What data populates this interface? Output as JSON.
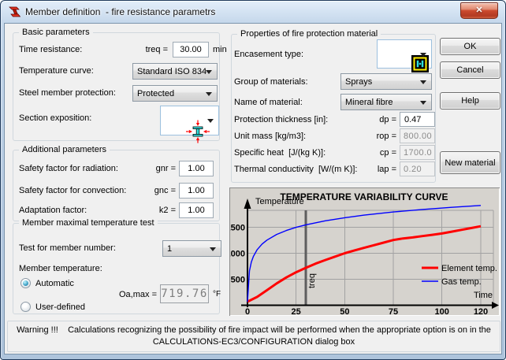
{
  "window": {
    "title": "Member definition  - fire resistance parametrs",
    "close_glyph": "✕"
  },
  "icons": {
    "titlebar": "steel-beam-icon",
    "close": "close-icon",
    "section_exposition": "beam-exposed-four-sides-icon",
    "encasement": "contour-encasement-icon"
  },
  "colors": {
    "element_temp": "#ff0000",
    "gas_temp": "#0000ff",
    "dialog_bg": "#f0f0f0",
    "chart_bg": "#d6d3ce",
    "close_button": "#c04a2e"
  },
  "basic": {
    "title": "Basic parameters",
    "time_resistance": {
      "label": "Time resistance:",
      "symbol": "treq =",
      "value": "30.00",
      "unit": "min"
    },
    "temperature_curve": {
      "label": "Temperature curve:",
      "value": "Standard ISO 834"
    },
    "steel_protection": {
      "label": "Steel member protection:",
      "value": "Protected"
    },
    "section_exposition": {
      "label": "Section exposition:"
    }
  },
  "additional": {
    "title": "Additional parameters",
    "rows": [
      {
        "label": "Safety factor for radiation:",
        "symbol": "gnr =",
        "value": "1.00"
      },
      {
        "label": "Safety factor for convection:",
        "symbol": "gnc =",
        "value": "1.00"
      },
      {
        "label": "Adaptation factor:",
        "symbol": "k2 =",
        "value": "1.00"
      }
    ]
  },
  "member_test": {
    "title": "Member maximal temperature test",
    "member_number": {
      "label": "Test for member number:",
      "value": "1"
    },
    "member_temperature_label": "Member temperature:",
    "options": [
      {
        "label": "Automatic",
        "selected": true
      },
      {
        "label": "User-defined",
        "selected": false
      }
    ],
    "oamax": {
      "symbol": "Oa,max =",
      "value": "719.76",
      "unit": "°F"
    }
  },
  "protection": {
    "title": "Properties of fire protection material",
    "encasement_label": "Encasement type:",
    "group_of_materials": {
      "label": "Group of materials:",
      "value": "Sprays"
    },
    "name_of_material": {
      "label": "Name of material:",
      "value": "Mineral fibre"
    },
    "rows": [
      {
        "label": "Protection thickness [in]:",
        "symbol": "dp =",
        "value": "0.47",
        "disabled": false
      },
      {
        "label": "Unit mass [kg/m3]:",
        "symbol": "rop =",
        "value": "800.00",
        "disabled": true
      },
      {
        "label": "Specific heat  [J/(kg K)]:",
        "symbol": "cp =",
        "value": "1700.0",
        "disabled": true
      },
      {
        "label": "Thermal conductivity  [W/(m K)]:",
        "symbol": "lap =",
        "value": "0.20",
        "disabled": true
      }
    ]
  },
  "buttons": {
    "ok": "OK",
    "cancel": "Cancel",
    "help": "Help",
    "new_material": "New material"
  },
  "warning": {
    "line1": "Warning !!!    Calculations recognizing the possibility of fire impact will be performed when the appropriate option is on in the",
    "line2": "CALCULATIONS-EC3/CONFIGURATION dialog box"
  },
  "chart_data": {
    "type": "line",
    "title": "TEMPERATURE VARIABILITY CURVE",
    "xlabel": "Time",
    "ylabel": "Temperature",
    "xlim": [
      0,
      120
    ],
    "ylim": [
      0,
      1950
    ],
    "xticks": [
      0,
      25,
      50,
      75,
      100,
      120
    ],
    "yticks": [
      500,
      1000,
      1500
    ],
    "grid": true,
    "legend_position": "right-center",
    "marker": {
      "label": "treq",
      "x": 30
    },
    "series": [
      {
        "name": "Element temp.",
        "color": "#ff0000",
        "width": 3,
        "x": [
          0,
          5,
          10,
          15,
          20,
          25,
          30,
          35,
          40,
          45,
          50,
          55,
          60,
          65,
          70,
          75,
          80,
          85,
          90,
          95,
          100,
          105,
          110,
          115,
          120
        ],
        "y": [
          68,
          160,
          290,
          420,
          535,
          635,
          720,
          800,
          870,
          935,
          1000,
          1055,
          1105,
          1155,
          1205,
          1255,
          1285,
          1305,
          1330,
          1355,
          1380,
          1415,
          1450,
          1485,
          1520
        ]
      },
      {
        "name": "Gas temp.",
        "color": "#0000ff",
        "width": 1.4,
        "x": [
          0,
          1,
          2,
          3,
          5,
          7.5,
          10,
          15,
          20,
          25,
          30,
          40,
          50,
          60,
          75,
          90,
          105,
          120
        ],
        "y": [
          68,
          660,
          832,
          936,
          1069,
          1177,
          1253,
          1362,
          1438,
          1498,
          1547,
          1625,
          1684,
          1733,
          1794,
          1843,
          1884,
          1920
        ]
      }
    ]
  }
}
